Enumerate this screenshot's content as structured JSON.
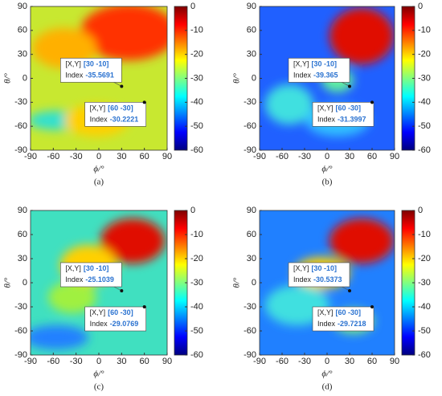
{
  "chart_data": [
    {
      "type": "heatmap",
      "caption": "(a)",
      "x_label": "ϕ/°",
      "y_label": "θ/°",
      "xlim": [
        -90,
        90
      ],
      "ylim": [
        -90,
        90
      ],
      "xticks": [
        -90,
        -60,
        -30,
        0,
        30,
        60,
        90
      ],
      "yticks": [
        -90,
        -60,
        -30,
        0,
        30,
        60,
        90
      ],
      "colorbar": {
        "colormap": "jet",
        "clim": [
          -60,
          0
        ],
        "ticks": [
          0,
          -10,
          -20,
          -30,
          -40,
          -50,
          -60
        ]
      },
      "datatips": [
        {
          "xy_label": "[X,Y]",
          "xy_text": "[30 -10]",
          "x": 30,
          "y": -10,
          "index_label": "Index",
          "index": -35.5691
        },
        {
          "xy_label": "[X,Y]",
          "xy_text": "[60 -30]",
          "x": 60,
          "y": -30,
          "index_label": "Index",
          "index": -30.2221
        }
      ]
    },
    {
      "type": "heatmap",
      "caption": "(b)",
      "x_label": "ϕ/°",
      "y_label": "θ/°",
      "xlim": [
        -90,
        90
      ],
      "ylim": [
        -90,
        90
      ],
      "xticks": [
        -90,
        -60,
        -30,
        0,
        30,
        60,
        90
      ],
      "yticks": [
        -90,
        -60,
        -30,
        0,
        30,
        60,
        90
      ],
      "colorbar": {
        "colormap": "jet",
        "clim": [
          -60,
          0
        ],
        "ticks": [
          0,
          -10,
          -20,
          -30,
          -40,
          -50,
          -60
        ]
      },
      "datatips": [
        {
          "xy_label": "[X,Y]",
          "xy_text": "[30 -10]",
          "x": 30,
          "y": -10,
          "index_label": "Index",
          "index": -39.365
        },
        {
          "xy_label": "[X,Y]",
          "xy_text": "[60 -30]",
          "x": 60,
          "y": -30,
          "index_label": "Index",
          "index": -31.3997
        }
      ]
    },
    {
      "type": "heatmap",
      "caption": "(c)",
      "x_label": "ϕ/°",
      "y_label": "θ/°",
      "xlim": [
        -90,
        90
      ],
      "ylim": [
        -90,
        90
      ],
      "xticks": [
        -90,
        -60,
        -30,
        0,
        30,
        60,
        90
      ],
      "yticks": [
        -90,
        -60,
        -30,
        0,
        30,
        60,
        90
      ],
      "colorbar": {
        "colormap": "jet",
        "clim": [
          -60,
          0
        ],
        "ticks": [
          0,
          -10,
          -20,
          -30,
          -40,
          -50,
          -60
        ]
      },
      "datatips": [
        {
          "xy_label": "[X,Y]",
          "xy_text": "[30 -10]",
          "x": 30,
          "y": -10,
          "index_label": "Index",
          "index": -25.1039
        },
        {
          "xy_label": "[X,Y]",
          "xy_text": "[60 -30]",
          "x": 60,
          "y": -30,
          "index_label": "Index",
          "index": -29.0769
        }
      ]
    },
    {
      "type": "heatmap",
      "caption": "(d)",
      "x_label": "ϕ/°",
      "y_label": "θ/°",
      "xlim": [
        -90,
        90
      ],
      "ylim": [
        -90,
        90
      ],
      "xticks": [
        -90,
        -60,
        -30,
        0,
        30,
        60,
        90
      ],
      "yticks": [
        -90,
        -60,
        -30,
        0,
        30,
        60,
        90
      ],
      "colorbar": {
        "colormap": "jet",
        "clim": [
          -60,
          0
        ],
        "ticks": [
          0,
          -10,
          -20,
          -30,
          -40,
          -50,
          -60
        ]
      },
      "datatips": [
        {
          "xy_label": "[X,Y]",
          "xy_text": "[30 -10]",
          "x": 30,
          "y": -10,
          "index_label": "Index",
          "index": -30.5373
        },
        {
          "xy_label": "[X,Y]",
          "xy_text": "[60 -30]",
          "x": 60,
          "y": -30,
          "index_label": "Index",
          "index": -29.7218
        }
      ]
    }
  ]
}
